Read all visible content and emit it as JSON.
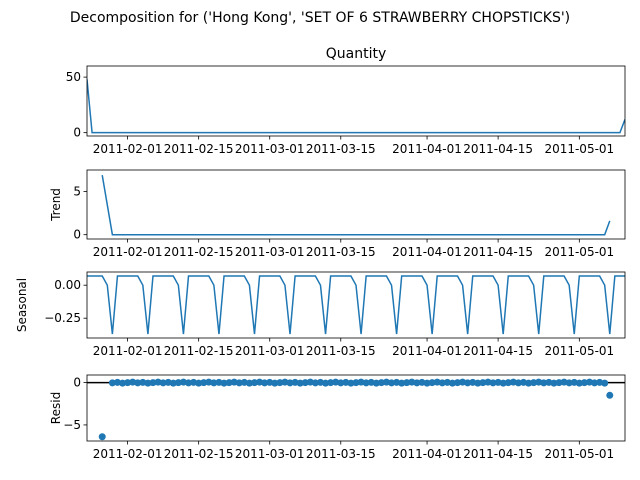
{
  "suptitle": "Decomposition for ('Hong Kong', 'SET OF 6 STRAWBERRY CHOPSTICKS')",
  "line_color": "#1f77b4",
  "xticks": [
    "2011-02-01",
    "2011-02-15",
    "2011-03-01",
    "2011-03-15",
    "2011-04-01",
    "2011-04-15",
    "2011-05-01"
  ],
  "chart_data": [
    {
      "type": "line",
      "title": "Quantity",
      "ylabel": "",
      "x_range": [
        "2011-01-24",
        "2011-05-10"
      ],
      "ylim": [
        -3,
        60
      ],
      "yticks": [
        0,
        50
      ],
      "ytick_labels": [
        "0",
        "50"
      ],
      "series": [
        {
          "points": [
            [
              "2011-01-24",
              48
            ],
            [
              "2011-01-25",
              0
            ],
            [
              "2011-05-09",
              0
            ],
            [
              "2011-05-10",
              12
            ]
          ]
        }
      ]
    },
    {
      "type": "line",
      "title": "",
      "ylabel": "Trend",
      "x_range": [
        "2011-01-24",
        "2011-05-10"
      ],
      "ylim": [
        -0.5,
        7.5
      ],
      "yticks": [
        0,
        5
      ],
      "ytick_labels": [
        "0",
        "5"
      ],
      "series": [
        {
          "points": [
            [
              "2011-01-27",
              6.9
            ],
            [
              "2011-01-29",
              0
            ],
            [
              "2011-05-06",
              0
            ],
            [
              "2011-05-07",
              1.6
            ]
          ]
        }
      ]
    },
    {
      "type": "line",
      "title": "",
      "ylabel": "Seasonal",
      "x_range": [
        "2011-01-24",
        "2011-05-10"
      ],
      "ylim": [
        -0.4,
        0.1
      ],
      "yticks": [
        0.0,
        -0.25
      ],
      "ytick_labels": [
        "0.00",
        "−0.25"
      ],
      "pattern": {
        "start": "2011-01-24",
        "period_days": 7,
        "weekly_values": [
          0.07,
          0.07,
          0.07,
          0.07,
          0.0,
          -0.37,
          0.07
        ]
      },
      "series": []
    },
    {
      "type": "scatter",
      "title": "",
      "ylabel": "Resid",
      "x_range": [
        "2011-01-24",
        "2011-05-10"
      ],
      "ylim": [
        -6.9,
        0.9
      ],
      "yticks": [
        0,
        -5
      ],
      "ytick_labels": [
        "0",
        "−5"
      ],
      "baseline": 0,
      "points": [
        [
          "2011-01-27",
          -6.4
        ],
        [
          "2011-05-07",
          -1.5
        ]
      ],
      "near_zero_range": [
        "2011-01-29",
        "2011-05-06"
      ]
    }
  ]
}
